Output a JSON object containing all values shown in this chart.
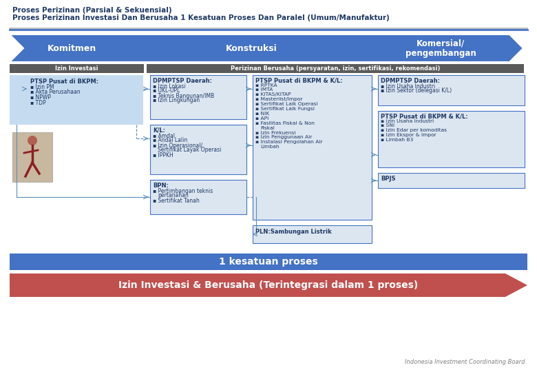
{
  "title_line1": "Proses Perizinan (Parsial & Sekuensial)",
  "title_line2": "Proses Perizinan Investasi Dan Berusaha 1 Kesatuan Proses Dan Paralel (Umum/Manufaktur)",
  "title_color": "#1f3864",
  "arrow_color": "#4472c4",
  "arrow_label1": "Komitmen",
  "arrow_label2": "Konstruksi",
  "arrow_label3": "Komersial/\npengembangan",
  "dark_band_color": "#5a5a5a",
  "label_izin_investasi": "Izin Investasi",
  "label_izin_berusaha": "Perizinan Berusaha (persyaratan, izin, sertifikasi, rekomendasi)",
  "box1_title": "PTSP Pusat di BKPM:",
  "box1_items": [
    "Izin PM",
    "Akta Perusahaan",
    "NPWP",
    "TDP"
  ],
  "box2_title": "DPMPTSP Daerah:",
  "box2_items": [
    "Izin Lokasi",
    "UKL-UPL",
    "Teknis Bangunan/IMB",
    "Izin Lingkungan"
  ],
  "box3_title": "K/L:",
  "box3_items": [
    "Amdal",
    "Andal Lalin",
    "Izin Operasional/\nSertifikat Layak Operasi",
    "IPPKH"
  ],
  "box4_title": "BPN:",
  "box4_items": [
    "Pertimbangan teknis\npertanahan",
    "Sertifikat Tanah"
  ],
  "box5_title": "PTSP Pusat di BKPM & K/L:",
  "box5_items": [
    "RPTKA",
    "IMTA",
    "KITAS/KITAP",
    "Masterlist/Impor",
    "Sertifikat Laik Operasi",
    "Sertifikat Laik Fungsi",
    "NIK",
    "API",
    "Fasilitas Fiskal & Non\nFiskal",
    "Izin Frekuensi",
    "Izin Penggunaan Air",
    "Instalasi Pengolahan Air\nLimbah"
  ],
  "box6_title": "PLN:",
  "box6_item": "Sambungan Listrik",
  "box7_title": "DPMPTSP Daerah:",
  "box7_items": [
    "Izin Usaha Industri",
    "Izin Sektor (delegasi K/L)"
  ],
  "box8_title": "PTSP Pusat di BKPM & K/L:",
  "box8_items": [
    "Izin Usaha Industri",
    "SNI",
    "Izin Edar per komoditas",
    "Izin Ekspor & Impor",
    "Limbah B3"
  ],
  "box9_title": "BPJS",
  "bottom_banner_text": "1 kesatuan proses",
  "bottom_banner_color": "#4472c4",
  "bottom_arrow_text": "Izin Investasi & Berusaha (Terintegrasi dalam 1 proses)",
  "bottom_arrow_color": "#c0504d",
  "footer_text": "Indonesia Investment Coordinating Board",
  "box_border_color": "#4472c4",
  "box_bg_color": "#dce6f1",
  "box1_bg_color": "#c5dcf0",
  "line_color": "#5b8db8",
  "bg_color": "#ffffff"
}
